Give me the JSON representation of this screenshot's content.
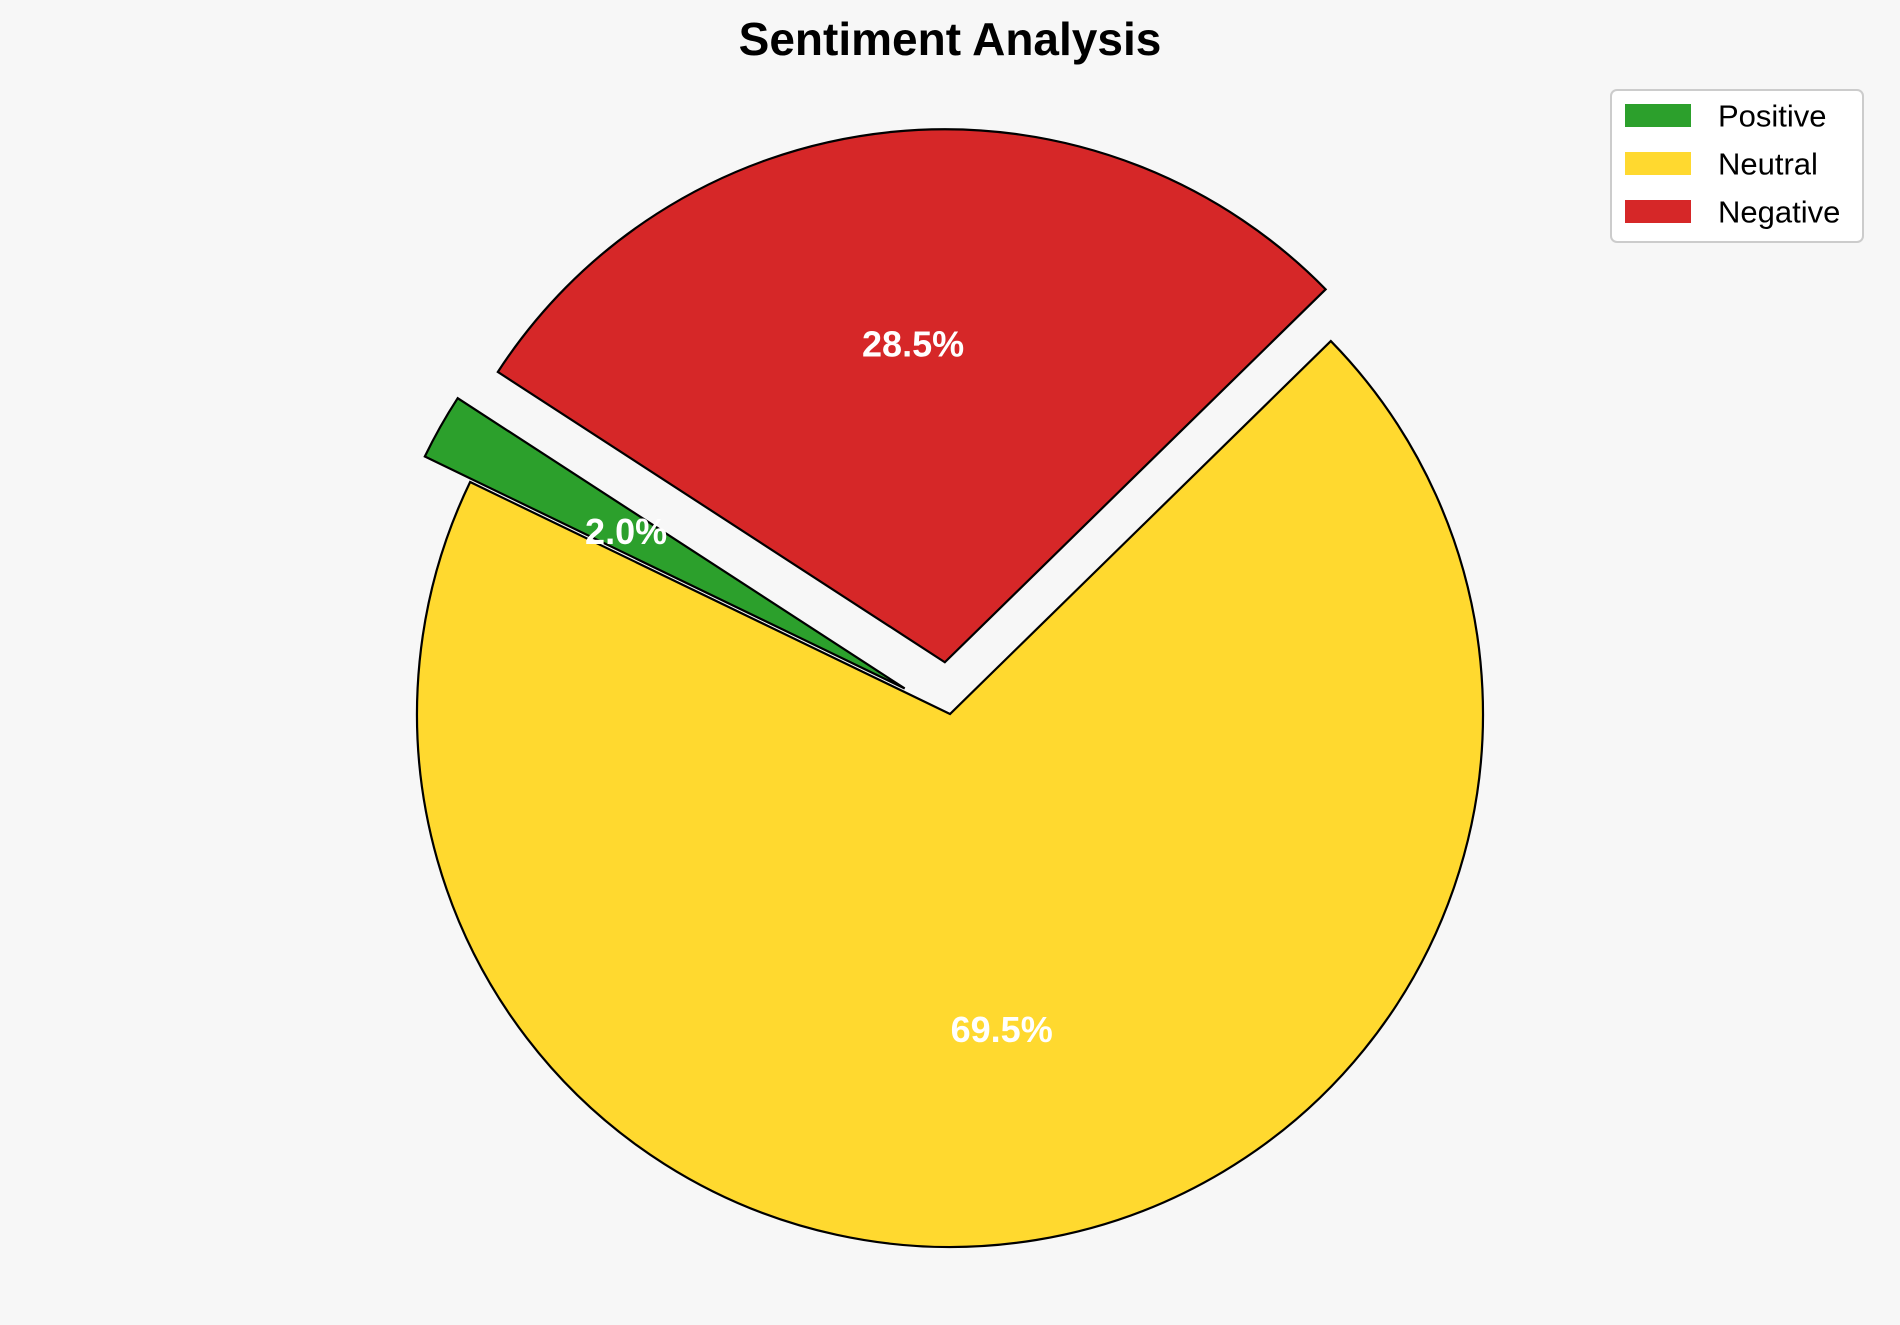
{
  "chart_data": {
    "type": "pie",
    "title": "Sentiment Analysis",
    "categories": [
      "Positive",
      "Neutral",
      "Negative"
    ],
    "values": [
      2.0,
      69.5,
      28.5
    ],
    "labels": [
      "2.0%",
      "69.5%",
      "28.5%"
    ],
    "colors": [
      "#2ca02c",
      "#ffd92f",
      "#d62728"
    ],
    "exploded": [
      "Positive",
      "Negative"
    ],
    "legend_position": "top-right"
  }
}
